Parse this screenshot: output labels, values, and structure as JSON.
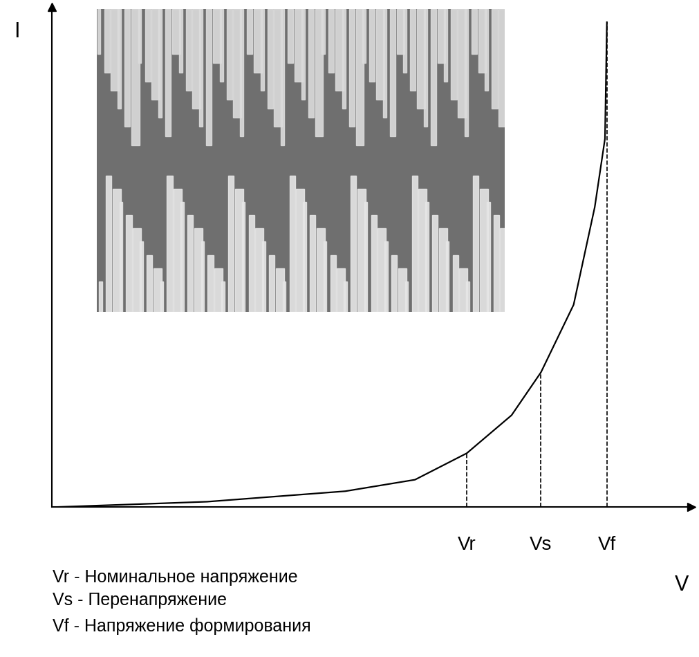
{
  "chart_data": {
    "type": "line",
    "x_label": "V",
    "y_label": "I",
    "x": [
      0,
      24.3,
      45.9,
      56.8,
      64.9,
      71.9,
      76.5,
      81.6,
      84.9,
      86.5,
      86.8
    ],
    "values": [
      0,
      1.1,
      3.2,
      5.5,
      10.8,
      18.4,
      27,
      40.5,
      60,
      73.7,
      97
    ],
    "color": "#000000",
    "xlim": [
      0,
      100
    ],
    "ylim": [
      0,
      100
    ],
    "xticks": [
      {
        "value": 64.9,
        "label": "Vr"
      },
      {
        "value": 76.5,
        "label": "Vs"
      },
      {
        "value": 86.8,
        "label": "Vf"
      }
    ],
    "yticks": [],
    "tick_labels": "x",
    "annotations": [
      "Vr - Номинальное напряжение",
      "Vs - Перенапряжение",
      "Vf - Напряжение формирования"
    ]
  }
}
